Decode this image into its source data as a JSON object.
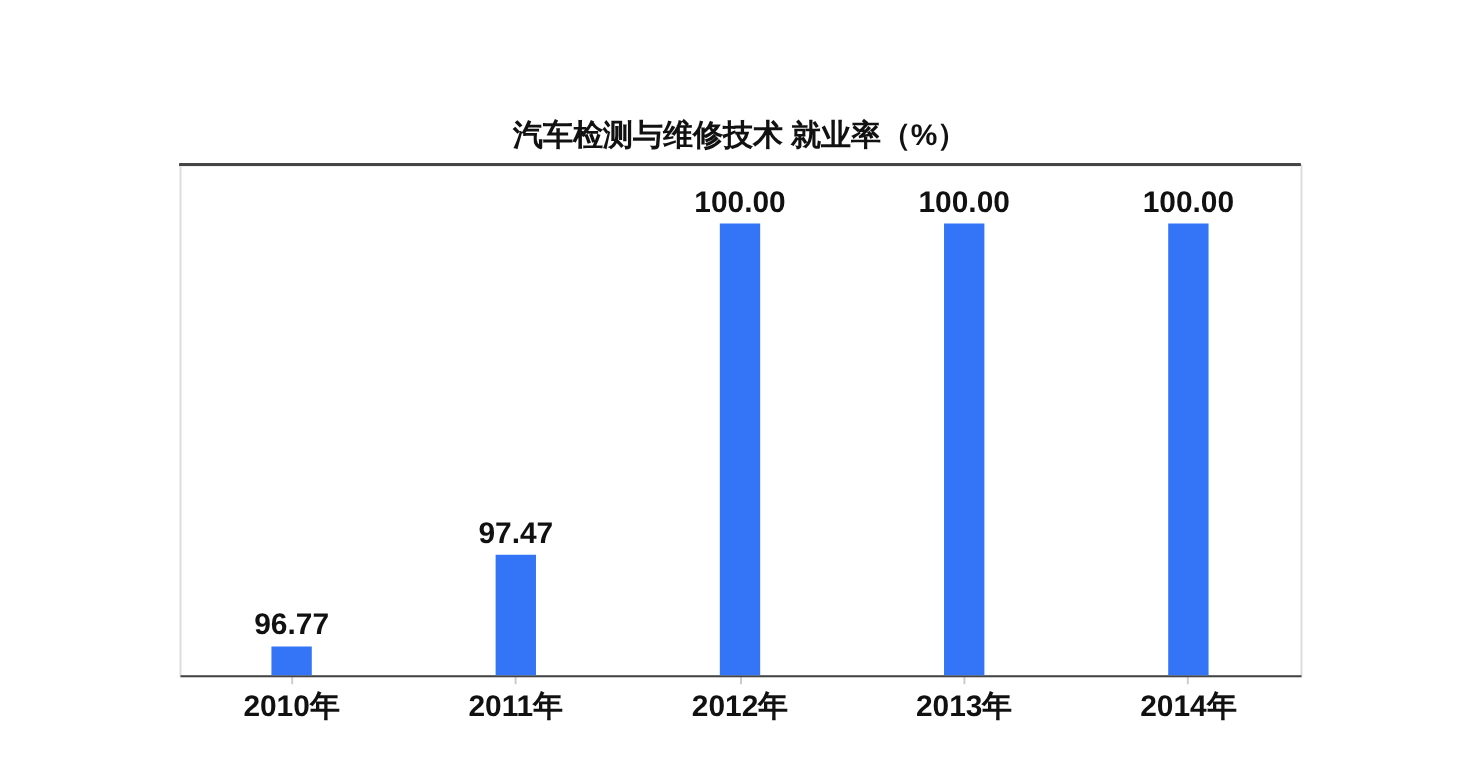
{
  "chart_data": {
    "type": "bar",
    "title": "汽车检测与维修技术 就业率（%）",
    "categories": [
      "2010年",
      "2011年",
      "2012年",
      "2013年",
      "2014年"
    ],
    "values": [
      96.77,
      97.47,
      100.0,
      100.0,
      100.0
    ],
    "color": "#3375f6",
    "ylim": [
      96.55,
      100.45
    ],
    "value_labels": [
      "96.77",
      "97.47",
      "100.00",
      "100.00",
      "100.00"
    ],
    "grid": false,
    "tick_labels": "x"
  }
}
